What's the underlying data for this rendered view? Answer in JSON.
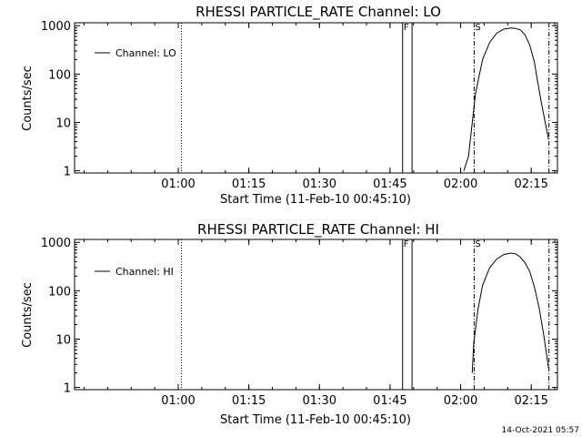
{
  "footer": {
    "timestamp": "14-Oct-2021 05:57"
  },
  "chart_data": [
    {
      "type": "line",
      "title": "RHESSI PARTICLE_RATE Channel: LO",
      "xlabel": "Start Time (11-Feb-10 00:45:10)",
      "ylabel": "Counts/sec",
      "scale": {
        "y": "log"
      },
      "xlim_min": [
        -5.2,
        97.4
      ],
      "ylim": [
        0.9,
        1150
      ],
      "x_ticks_min": [
        16.83,
        31.83,
        46.83,
        61.83,
        76.83,
        91.83
      ],
      "x_tick_labels": [
        "01:00",
        "01:15",
        "01:30",
        "01:45",
        "02:00",
        "02:15"
      ],
      "y_ticks": [
        1,
        10,
        100,
        1000
      ],
      "y_tick_labels": [
        "1",
        "10",
        "100",
        "1000"
      ],
      "legend": {
        "entries": [
          "Channel: LO"
        ],
        "position": "top-left"
      },
      "series": [
        {
          "name": "Channel: LO",
          "x_min": [
            77.5,
            78.5,
            80.0,
            81.5,
            83.0,
            84.5,
            86.0,
            87.5,
            88.5,
            89.5,
            90.5,
            91.5,
            92.5,
            93.0,
            94.0,
            95.5
          ],
          "y": [
            1.0,
            2.0,
            40,
            200,
            450,
            700,
            850,
            900,
            880,
            820,
            650,
            400,
            180,
            90,
            25,
            4.5
          ]
        }
      ],
      "markers": [
        {
          "kind": "dotted",
          "x_min": 17.5,
          "label": ""
        },
        {
          "kind": "solid",
          "x_min": 64.5,
          "label": "F"
        },
        {
          "kind": "solid",
          "x_min": 66.5,
          "label": ""
        },
        {
          "kind": "dashdot",
          "x_min": 79.7,
          "label": "S"
        },
        {
          "kind": "dashdot",
          "x_min": 95.6,
          "label": ""
        }
      ]
    },
    {
      "type": "line",
      "title": "RHESSI PARTICLE_RATE Channel: HI",
      "xlabel": "Start Time (11-Feb-10 00:45:10)",
      "ylabel": "Counts/sec",
      "scale": {
        "y": "log"
      },
      "xlim_min": [
        -5.2,
        97.4
      ],
      "ylim": [
        0.9,
        1150
      ],
      "x_ticks_min": [
        16.83,
        31.83,
        46.83,
        61.83,
        76.83,
        91.83
      ],
      "x_tick_labels": [
        "01:00",
        "01:15",
        "01:30",
        "01:45",
        "02:00",
        "02:15"
      ],
      "y_ticks": [
        1,
        10,
        100,
        1000
      ],
      "y_tick_labels": [
        "1",
        "10",
        "100",
        "1000"
      ],
      "legend": {
        "entries": [
          "Channel: HI"
        ],
        "position": "top-left"
      },
      "series": [
        {
          "name": "Channel: HI",
          "x_min": [
            79.3,
            79.6,
            80.5,
            81.5,
            83.0,
            84.5,
            86.0,
            87.5,
            88.5,
            89.5,
            90.5,
            91.5,
            92.5,
            93.5,
            94.5,
            95.5
          ],
          "y": [
            2.0,
            8.0,
            40,
            130,
            300,
            450,
            560,
            600,
            580,
            500,
            380,
            250,
            120,
            45,
            12,
            2.5
          ]
        }
      ],
      "markers": [
        {
          "kind": "dotted",
          "x_min": 17.5,
          "label": ""
        },
        {
          "kind": "solid",
          "x_min": 64.5,
          "label": "F"
        },
        {
          "kind": "solid",
          "x_min": 66.5,
          "label": ""
        },
        {
          "kind": "dashdot",
          "x_min": 79.7,
          "label": "S"
        },
        {
          "kind": "dashdot",
          "x_min": 95.6,
          "label": ""
        }
      ]
    }
  ]
}
